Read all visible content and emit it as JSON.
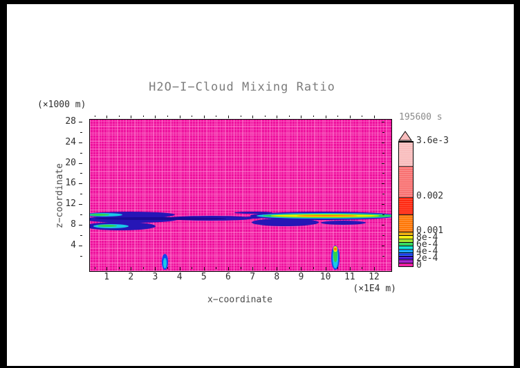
{
  "window": {
    "frame_color": "#000000",
    "canvas_color": "#ffffff"
  },
  "title": {
    "text": "H2O−I−Cloud Mixing Ratio",
    "color": "#7c7c7c"
  },
  "timestamp": {
    "text": "195600 s",
    "color": "#8a8a8a"
  },
  "axes": {
    "x": {
      "title": "x−coordinate",
      "unit": "(×1E4 m)",
      "major_ticks": [
        1,
        2,
        3,
        4,
        5,
        6,
        7,
        8,
        9,
        10,
        11,
        12
      ],
      "minor_ticks": [
        0.5,
        1.5,
        2.5,
        3.5,
        4.5,
        5.5,
        6.5,
        7.5,
        8.5,
        9.5,
        10.5,
        11.5,
        12
      ],
      "label_color": "#2e2e2e",
      "title_color": "#4a4a4a"
    },
    "z": {
      "title": "z−coordinate",
      "unit": "(×1000 m)",
      "major_ticks": [
        4,
        8,
        12,
        16,
        20,
        24,
        28
      ],
      "minor_ticks": [
        2,
        6,
        10,
        14,
        18,
        22,
        26
      ],
      "label_color": "#2e2e2e",
      "title_color": "#4a4a4a"
    }
  },
  "colorbar": {
    "max": 0.0036,
    "arrow_color": "#f8bcbc",
    "labels": [
      {
        "v": 0.0036,
        "t": "3.6e-3"
      },
      {
        "v": 0.002,
        "t": "0.002"
      },
      {
        "v": 0.001,
        "t": "0.001"
      },
      {
        "v": 0.0008,
        "t": "8e-4"
      },
      {
        "v": 0.0006,
        "t": "6e-4"
      },
      {
        "v": 0.0004,
        "t": "4e-4"
      },
      {
        "v": 0.0002,
        "t": "2e-4"
      },
      {
        "v": 0,
        "t": "0"
      }
    ],
    "segments": [
      {
        "v0": 0.0,
        "v1": 0.0001,
        "color": "#ee119d"
      },
      {
        "v0": 0.0001,
        "v1": 0.0002,
        "color": "#9a10c8"
      },
      {
        "v0": 0.0002,
        "v1": 0.0003,
        "color": "#3708c8"
      },
      {
        "v0": 0.0003,
        "v1": 0.0004,
        "color": "#1540f0"
      },
      {
        "v0": 0.0004,
        "v1": 0.0005,
        "color": "#0898f0"
      },
      {
        "v0": 0.0005,
        "v1": 0.0006,
        "color": "#00dcd0"
      },
      {
        "v0": 0.0006,
        "v1": 0.0007,
        "color": "#28d855"
      },
      {
        "v0": 0.0007,
        "v1": 0.0008,
        "color": "#97e020"
      },
      {
        "v0": 0.0008,
        "v1": 0.0009,
        "color": "#f2ee00"
      },
      {
        "v0": 0.0009,
        "v1": 0.001,
        "color": "#e8a800"
      },
      {
        "v0": 0.001,
        "v1": 0.0015,
        "color": "#ff7808"
      },
      {
        "v0": 0.0015,
        "v1": 0.002,
        "color": "#ff2810"
      },
      {
        "v0": 0.002,
        "v1": 0.0029,
        "color": "#f87272"
      },
      {
        "v0": 0.0029,
        "v1": 0.0036,
        "color": "#f8bcbc"
      }
    ]
  },
  "chart_data": {
    "type": "heatmap",
    "title": "H2O−I−Cloud Mixing Ratio",
    "xlabel": "x−coordinate (×1E4 m)",
    "ylabel": "z−coordinate (×1000 m)",
    "time_annotation": "195600 s",
    "xlim": [
      0,
      12.4
    ],
    "ylim": [
      0,
      29.3
    ],
    "background_value_color": "#ee119d",
    "levels": [
      0,
      0.0001,
      0.0002,
      0.0003,
      0.0004,
      0.0005,
      0.0006,
      0.0007,
      0.0008,
      0.0009,
      0.001,
      0.0015,
      0.002,
      0.0029,
      0.0036
    ],
    "palette": {
      "darkblue": "#2616b6",
      "navy": "#1a0b96",
      "blue": "#1545ee",
      "cyan": "#19c8e6",
      "teal": "#00dcc0",
      "green": "#30d050",
      "yellow": "#f2ee00",
      "amber": "#e8a800",
      "orange": "#ff7808"
    },
    "features": [
      {
        "name": "band-left-upper",
        "x0": -0.2,
        "x1": 3.5,
        "z0": 10.35,
        "z1": 11.55,
        "c": "darkblue"
      },
      {
        "name": "band-left-main",
        "x0": -0.2,
        "x1": 3.6,
        "z0": 9.3,
        "z1": 10.75,
        "c": "darkblue"
      },
      {
        "name": "band-left-ext",
        "x0": 3.2,
        "x1": 6.7,
        "z0": 9.75,
        "z1": 10.7,
        "c": "darkblue"
      },
      {
        "name": "lobe-left-lower",
        "x0": -0.2,
        "x1": 2.7,
        "z0": 7.85,
        "z1": 9.45,
        "c": "darkblue"
      },
      {
        "name": "core-left-navy",
        "x0": 0.2,
        "x1": 5.6,
        "z0": 9.85,
        "z1": 10.5,
        "c": "navy"
      },
      {
        "name": "streak-left-cyan",
        "x0": -0.15,
        "x1": 1.35,
        "z0": 10.55,
        "z1": 11.3,
        "c": "cyan"
      },
      {
        "name": "spot-left-green",
        "x0": 0.0,
        "x1": 0.8,
        "z0": 10.68,
        "z1": 11.15,
        "c": "green"
      },
      {
        "name": "streak-lower-cyan",
        "x0": 0.15,
        "x1": 1.6,
        "z0": 8.35,
        "z1": 9.15,
        "c": "cyan"
      },
      {
        "name": "spot-lower-green",
        "x0": 0.3,
        "x1": 1.1,
        "z0": 8.5,
        "z1": 8.95,
        "c": "green"
      },
      {
        "name": "band-connector",
        "x0": 6.3,
        "x1": 7.15,
        "z0": 10.15,
        "z1": 10.62,
        "c": "darkblue"
      },
      {
        "name": "streak-right-upper",
        "x0": 5.95,
        "x1": 7.5,
        "z0": 11.05,
        "z1": 11.55,
        "c": "darkblue"
      },
      {
        "name": "band-right-outline",
        "x0": 6.6,
        "x1": 12.6,
        "z0": 9.9,
        "z1": 11.45,
        "c": "darkblue"
      },
      {
        "name": "lobe-right-lower",
        "x0": 6.65,
        "x1": 9.4,
        "z0": 8.65,
        "z1": 10.15,
        "c": "darkblue"
      },
      {
        "name": "streak-right-lower",
        "x0": 9.5,
        "x1": 11.35,
        "z0": 8.95,
        "z1": 9.75,
        "c": "darkblue"
      },
      {
        "name": "band-right-cyan",
        "x0": 6.85,
        "x1": 12.6,
        "z0": 10.15,
        "z1": 11.25,
        "c": "cyan"
      },
      {
        "name": "band-right-green",
        "x0": 7.1,
        "x1": 12.5,
        "z0": 10.3,
        "z1": 11.1,
        "c": "green"
      },
      {
        "name": "band-right-yellow",
        "x0": 7.45,
        "x1": 11.9,
        "z0": 10.45,
        "z1": 10.97,
        "c": "yellow"
      },
      {
        "name": "band-right-orange",
        "x0": 8.5,
        "x1": 11.0,
        "z0": 10.56,
        "z1": 10.85,
        "c": "orange"
      },
      {
        "name": "plume-a-outline",
        "x0": 2.97,
        "x1": 3.22,
        "z0": 0.3,
        "z1": 3.3,
        "c": "blue"
      },
      {
        "name": "plume-a-core",
        "x0": 3.02,
        "x1": 3.17,
        "z0": 0.5,
        "z1": 2.6,
        "c": "cyan"
      },
      {
        "name": "plume-b-outline",
        "x0": 9.92,
        "x1": 10.28,
        "z0": 0.25,
        "z1": 5.0,
        "c": "blue"
      },
      {
        "name": "plume-b-cyan",
        "x0": 9.97,
        "x1": 10.22,
        "z0": 0.6,
        "z1": 4.6,
        "c": "cyan"
      },
      {
        "name": "plume-b-green",
        "x0": 10.0,
        "x1": 10.19,
        "z0": 1.7,
        "z1": 4.5,
        "c": "green"
      },
      {
        "name": "plume-b-yellow",
        "x0": 10.02,
        "x1": 10.17,
        "z0": 3.7,
        "z1": 4.75,
        "c": "yellow"
      },
      {
        "name": "plume-b-orange",
        "x0": 10.05,
        "x1": 10.14,
        "z0": 4.0,
        "z1": 4.55,
        "c": "orange"
      }
    ],
    "legend_position": "right",
    "grid": false
  }
}
